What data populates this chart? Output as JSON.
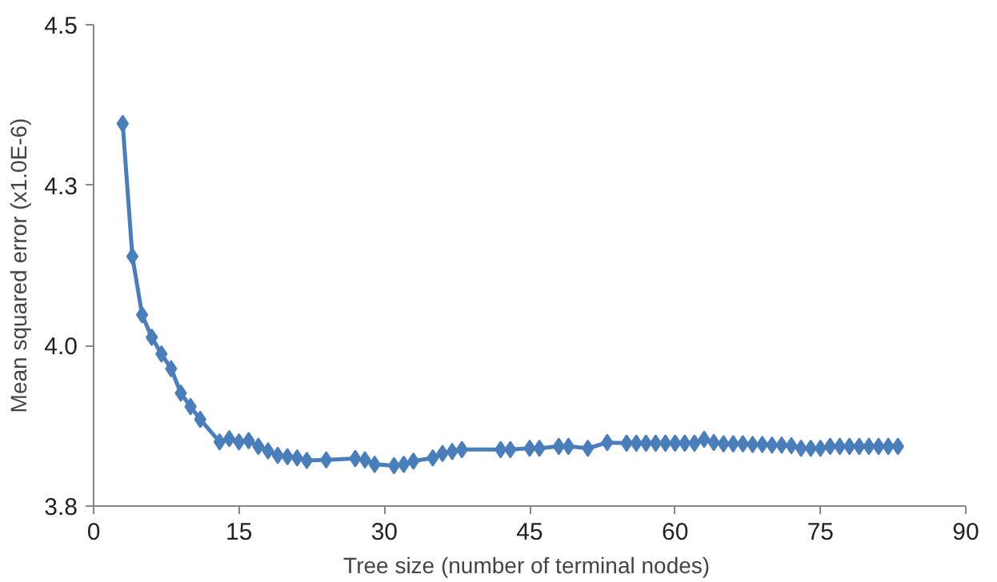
{
  "chart_data": {
    "type": "line",
    "xlabel": "Tree size (number of  terminal nodes)",
    "ylabel": "Mean squared error (x1.0E-6)",
    "xlim": [
      0,
      90
    ],
    "xticks": [
      0,
      15,
      30,
      45,
      60,
      75,
      90
    ],
    "ylim": [
      3.75,
      4.5
    ],
    "yticks": [
      {
        "value": 3.75,
        "label": "3.8"
      },
      {
        "value": 4.0,
        "label": "4.0"
      },
      {
        "value": 4.25,
        "label": "4.3"
      },
      {
        "value": 4.5,
        "label": "4.5"
      }
    ],
    "grid": false,
    "marker": "diamond",
    "line_style": "solid",
    "series": [
      {
        "color": "#4a7ebb",
        "x": [
          3,
          4,
          5,
          6,
          7,
          8,
          9,
          10,
          11,
          13,
          14,
          15,
          16,
          17,
          18,
          19,
          20,
          21,
          22,
          24,
          27,
          28,
          29,
          31,
          32,
          33,
          35,
          36,
          37,
          38,
          42,
          43,
          45,
          46,
          48,
          49,
          51,
          53,
          55,
          56,
          57,
          58,
          59,
          60,
          61,
          62,
          63,
          64,
          65,
          66,
          67,
          68,
          69,
          70,
          71,
          72,
          73,
          74,
          75,
          76,
          77,
          78,
          79,
          80,
          81,
          82,
          83
        ],
        "values": [
          4.346,
          4.139,
          4.048,
          4.013,
          3.987,
          3.964,
          3.926,
          3.905,
          3.885,
          3.85,
          3.855,
          3.85,
          3.852,
          3.843,
          3.836,
          3.829,
          3.827,
          3.825,
          3.821,
          3.822,
          3.824,
          3.822,
          3.815,
          3.813,
          3.815,
          3.82,
          3.825,
          3.832,
          3.835,
          3.838,
          3.838,
          3.838,
          3.84,
          3.84,
          3.843,
          3.843,
          3.84,
          3.849,
          3.848,
          3.848,
          3.848,
          3.848,
          3.848,
          3.848,
          3.848,
          3.848,
          3.854,
          3.849,
          3.847,
          3.847,
          3.847,
          3.846,
          3.846,
          3.845,
          3.845,
          3.844,
          3.84,
          3.84,
          3.84,
          3.843,
          3.843,
          3.843,
          3.843,
          3.843,
          3.843,
          3.843,
          3.843
        ]
      }
    ]
  }
}
